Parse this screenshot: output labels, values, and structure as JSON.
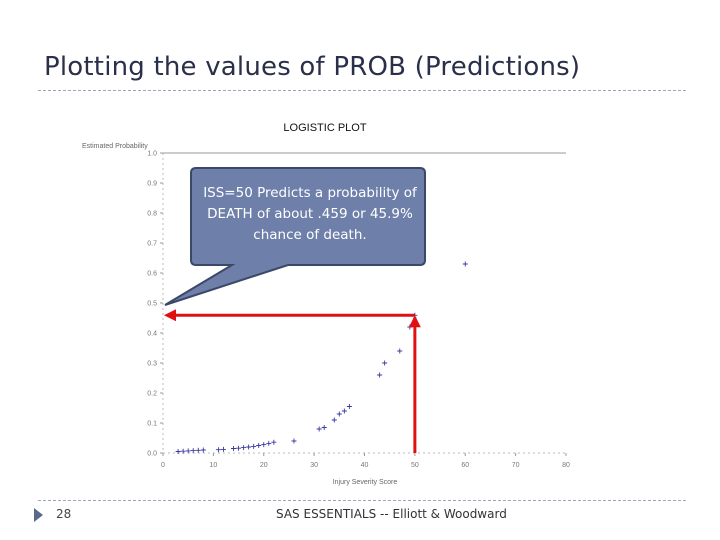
{
  "slide": {
    "title": "Plotting the values of PROB (Predictions)",
    "page_number": "28",
    "footer": "SAS ESSENTIALS -- Elliott & Woodward"
  },
  "callout": {
    "text": "ISS=50 Predicts a probability of DEATH of about .459 or 45.9% chance of death."
  },
  "colors": {
    "title": "#2a2f4a",
    "callout_fill": "#6e7faa",
    "callout_stroke": "#3c4868",
    "arrow": "#e01010",
    "points": "#3a3aa0"
  },
  "chart_data": {
    "type": "scatter",
    "title": "LOGISTIC PLOT",
    "xlabel": "Injury Severity Score",
    "ylabel": "Estimated Probability",
    "xlim": [
      0,
      80
    ],
    "ylim": [
      0,
      1.0
    ],
    "x_ticks": [
      "0",
      "10",
      "20",
      "30",
      "40",
      "50",
      "60",
      "70",
      "80"
    ],
    "y_ticks": [
      "0.0",
      "0.1",
      "0.2",
      "0.3",
      "0.4",
      "0.5",
      "0.6",
      "0.7",
      "0.8",
      "0.9",
      "1.0"
    ],
    "highlight": {
      "x": 50,
      "y": 0.459
    },
    "series": [
      {
        "name": "PROB",
        "x": [
          3,
          4,
          5,
          6,
          7,
          8,
          11,
          12,
          14,
          15,
          16,
          17,
          18,
          19,
          20,
          21,
          22,
          26,
          31,
          32,
          34,
          35,
          36,
          37,
          43,
          44,
          47,
          49,
          50,
          60
        ],
        "y": [
          0.005,
          0.006,
          0.007,
          0.008,
          0.009,
          0.01,
          0.011,
          0.012,
          0.015,
          0.016,
          0.018,
          0.02,
          0.022,
          0.025,
          0.028,
          0.032,
          0.036,
          0.04,
          0.08,
          0.085,
          0.11,
          0.13,
          0.14,
          0.155,
          0.26,
          0.3,
          0.34,
          0.42,
          0.459,
          0.63
        ]
      }
    ]
  }
}
